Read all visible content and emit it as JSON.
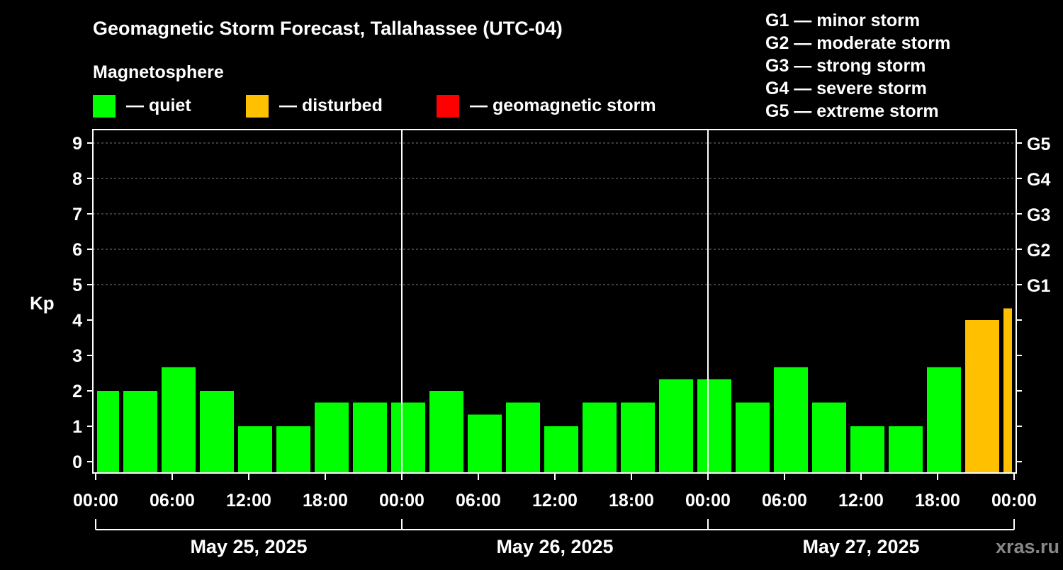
{
  "chart_data": {
    "type": "bar",
    "title": "Geomagnetic Storm Forecast, Tallahassee (UTC-04)",
    "legend_title": "Magnetosphere",
    "legend": [
      {
        "label": "— quiet",
        "color": "#00ff00"
      },
      {
        "label": "— disturbed",
        "color": "#ffc000"
      },
      {
        "label": "— geomagnetic storm",
        "color": "#ff0000"
      }
    ],
    "g_scale": [
      "G1 — minor storm",
      "G2 — moderate storm",
      "G3 — strong storm",
      "G4 — severe storm",
      "G5 — extreme storm"
    ],
    "ylabel": "Kp",
    "ylim": [
      0,
      9
    ],
    "yticks": [
      "0",
      "1",
      "2",
      "3",
      "4",
      "5",
      "6",
      "7",
      "8",
      "9"
    ],
    "right_ticks": [
      {
        "kp": 5,
        "label": "G1"
      },
      {
        "kp": 6,
        "label": "G2"
      },
      {
        "kp": 7,
        "label": "G3"
      },
      {
        "kp": 8,
        "label": "G4"
      },
      {
        "kp": 9,
        "label": "G5"
      }
    ],
    "xticks": [
      "00:00",
      "06:00",
      "12:00",
      "18:00",
      "00:00",
      "06:00",
      "12:00",
      "18:00",
      "00:00",
      "06:00",
      "12:00",
      "18:00",
      "00:00"
    ],
    "dates": [
      "May 25, 2025",
      "May 26, 2025",
      "May 27, 2025"
    ],
    "bars": [
      {
        "start": 0,
        "end": 2,
        "kp": 2.0
      },
      {
        "start": 2,
        "end": 5,
        "kp": 2.0
      },
      {
        "start": 5,
        "end": 8,
        "kp": 2.67
      },
      {
        "start": 8,
        "end": 11,
        "kp": 2.0
      },
      {
        "start": 11,
        "end": 14,
        "kp": 1.0
      },
      {
        "start": 14,
        "end": 17,
        "kp": 1.0
      },
      {
        "start": 17,
        "end": 20,
        "kp": 1.67
      },
      {
        "start": 20,
        "end": 23,
        "kp": 1.67
      },
      {
        "start": 23,
        "end": 26,
        "kp": 1.67
      },
      {
        "start": 26,
        "end": 29,
        "kp": 2.0
      },
      {
        "start": 29,
        "end": 32,
        "kp": 1.33
      },
      {
        "start": 32,
        "end": 35,
        "kp": 1.67
      },
      {
        "start": 35,
        "end": 38,
        "kp": 1.0
      },
      {
        "start": 38,
        "end": 41,
        "kp": 1.67
      },
      {
        "start": 41,
        "end": 44,
        "kp": 1.67
      },
      {
        "start": 44,
        "end": 47,
        "kp": 2.33
      },
      {
        "start": 47,
        "end": 50,
        "kp": 2.33
      },
      {
        "start": 50,
        "end": 53,
        "kp": 1.67
      },
      {
        "start": 53,
        "end": 56,
        "kp": 2.67
      },
      {
        "start": 56,
        "end": 59,
        "kp": 1.67
      },
      {
        "start": 59,
        "end": 62,
        "kp": 1.0
      },
      {
        "start": 62,
        "end": 65,
        "kp": 1.0
      },
      {
        "start": 65,
        "end": 68,
        "kp": 2.67
      },
      {
        "start": 68,
        "end": 71,
        "kp": 4.0
      },
      {
        "start": 71,
        "end": 72,
        "kp": 4.33
      }
    ],
    "colors": {
      "quiet": "#00ff00",
      "disturbed": "#ffc000",
      "storm": "#ff0000"
    }
  },
  "watermark": "xras.ru"
}
